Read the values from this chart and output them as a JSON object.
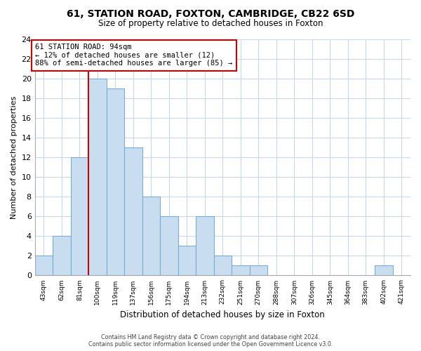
{
  "title": "61, STATION ROAD, FOXTON, CAMBRIDGE, CB22 6SD",
  "subtitle": "Size of property relative to detached houses in Foxton",
  "xlabel": "Distribution of detached houses by size in Foxton",
  "ylabel": "Number of detached properties",
  "bin_labels": [
    "43sqm",
    "62sqm",
    "81sqm",
    "100sqm",
    "119sqm",
    "137sqm",
    "156sqm",
    "175sqm",
    "194sqm",
    "213sqm",
    "232sqm",
    "251sqm",
    "270sqm",
    "288sqm",
    "307sqm",
    "326sqm",
    "345sqm",
    "364sqm",
    "383sqm",
    "402sqm",
    "421sqm"
  ],
  "bar_heights": [
    2,
    4,
    12,
    20,
    19,
    13,
    8,
    6,
    3,
    6,
    2,
    1,
    1,
    0,
    0,
    0,
    0,
    0,
    0,
    1,
    0
  ],
  "bar_color": "#c9ddf0",
  "bar_edge_color": "#7aadd4",
  "vline_x": 3.0,
  "vline_color": "#cc0000",
  "annotation_text": "61 STATION ROAD: 94sqm\n← 12% of detached houses are smaller (12)\n88% of semi-detached houses are larger (85) →",
  "annotation_box_color": "white",
  "annotation_box_edge_color": "#cc0000",
  "ylim": [
    0,
    24
  ],
  "yticks": [
    0,
    2,
    4,
    6,
    8,
    10,
    12,
    14,
    16,
    18,
    20,
    22,
    24
  ],
  "grid_color": "#c8d8e8",
  "footer_line1": "Contains HM Land Registry data © Crown copyright and database right 2024.",
  "footer_line2": "Contains public sector information licensed under the Open Government Licence v3.0."
}
